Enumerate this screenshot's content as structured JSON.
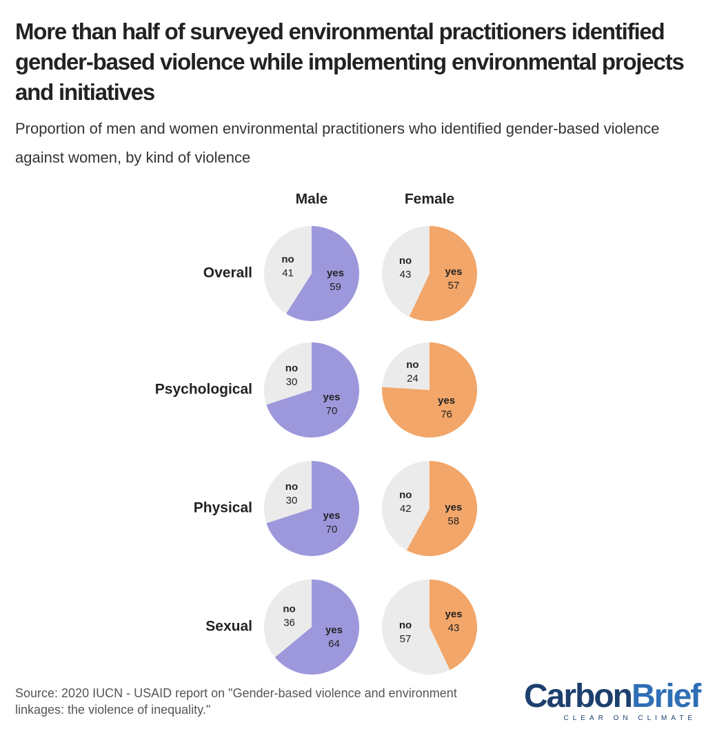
{
  "chart_data": {
    "type": "pie",
    "title": "More than half of surveyed environmental practitioners identified gender-based violence while implementing environmental projects and initiatives",
    "subtitle": "Proportion of men and women environmental practitioners who identified gender-based violence against women, by kind of violence",
    "source": "Source: 2020 IUCN - USAID report on \"Gender-based violence and environment linkages: the violence of inequality.\"",
    "rows": [
      "Overall",
      "Psychological",
      "Physical",
      "Sexual"
    ],
    "slice_labels": [
      "yes",
      "no"
    ],
    "no_color": "#ebebeb",
    "series": [
      {
        "name": "Male",
        "color": "#9d98dc",
        "values": [
          [
            59,
            41
          ],
          [
            70,
            30
          ],
          [
            70,
            30
          ],
          [
            64,
            36
          ]
        ]
      },
      {
        "name": "Female",
        "color": "#f2a669",
        "values": [
          [
            57,
            43
          ],
          [
            76,
            24
          ],
          [
            58,
            42
          ],
          [
            43,
            57
          ]
        ]
      }
    ]
  },
  "logo": {
    "parts": [
      "Carbon",
      "Brief"
    ],
    "tagline": "CLEAR ON CLIMATE"
  }
}
